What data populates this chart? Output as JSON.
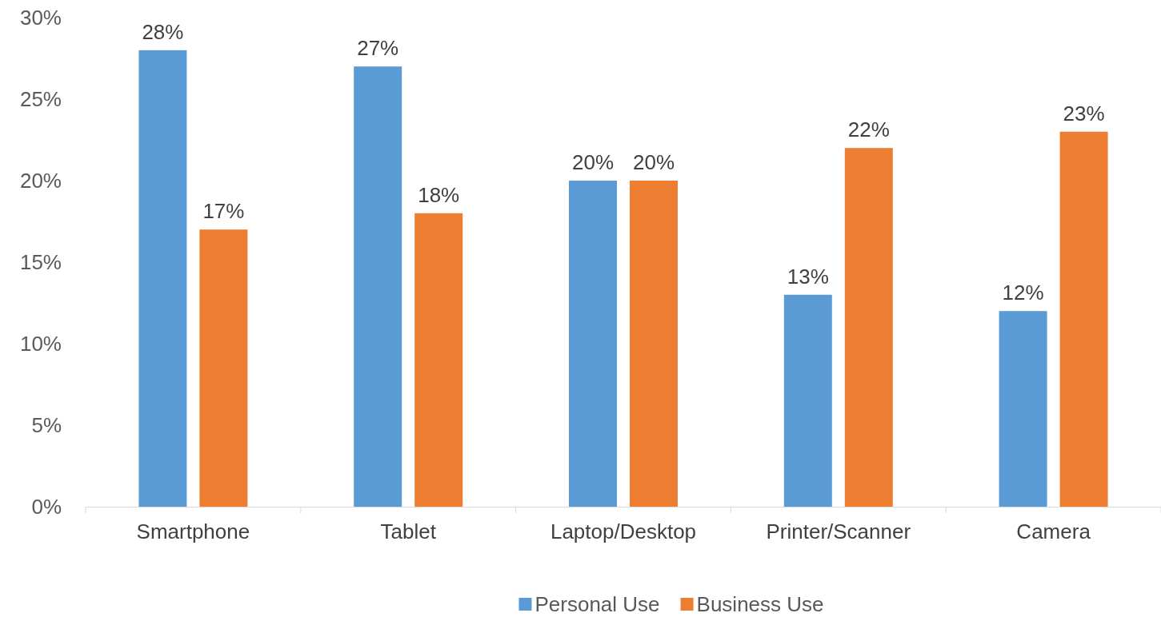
{
  "chart_data": {
    "type": "bar",
    "categories": [
      "Smartphone",
      "Tablet",
      "Laptop/Desktop",
      "Printer/Scanner",
      "Camera"
    ],
    "series": [
      {
        "name": "Personal Use",
        "color": "#5b9bd5",
        "values": [
          28,
          27,
          20,
          13,
          12
        ],
        "value_labels": [
          "28%",
          "27%",
          "20%",
          "13%",
          "12%"
        ]
      },
      {
        "name": "Business Use",
        "color": "#ed7d31",
        "values": [
          17,
          18,
          20,
          22,
          23
        ],
        "value_labels": [
          "17%",
          "18%",
          "20%",
          "22%",
          "23%"
        ]
      }
    ],
    "ylim": [
      0,
      30
    ],
    "yticks": [
      {
        "value": 0,
        "label": "0%"
      },
      {
        "value": 5,
        "label": "5%"
      },
      {
        "value": 10,
        "label": "10%"
      },
      {
        "value": 15,
        "label": "15%"
      },
      {
        "value": 20,
        "label": "20%"
      },
      {
        "value": 25,
        "label": "25%"
      },
      {
        "value": 30,
        "label": "30%"
      }
    ],
    "grid": false,
    "legend": "bottom"
  }
}
